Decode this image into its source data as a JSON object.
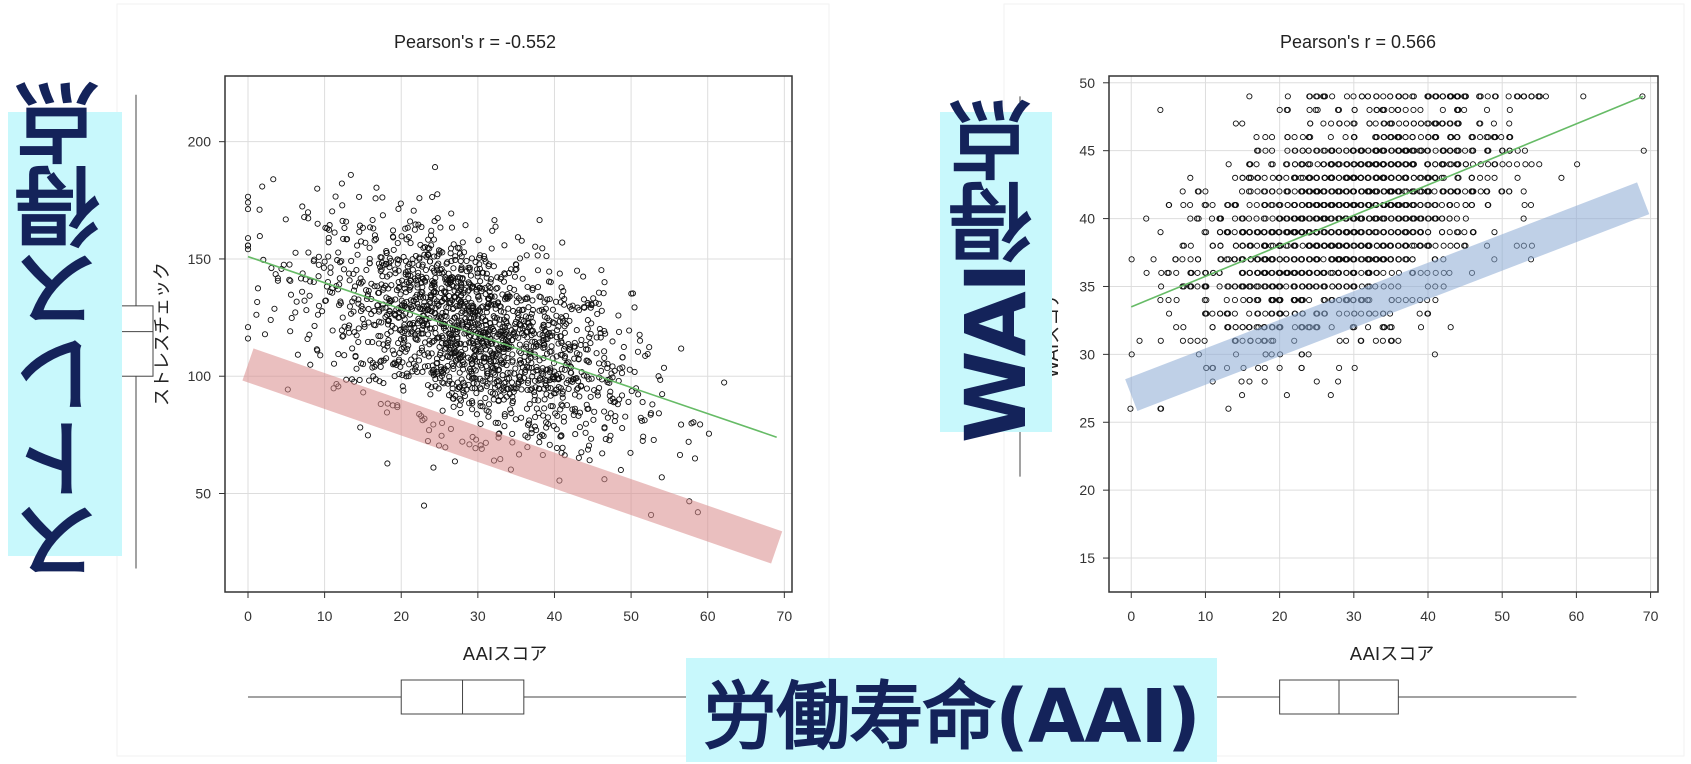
{
  "overlay_labels": {
    "stress": "ストレス得点",
    "wai": "WAI得点",
    "aai": "労働寿命(AAI)"
  },
  "colors": {
    "band_left": "#d98a8a",
    "band_right": "#8aaad4",
    "regression_line": "#66bb66",
    "point": "#111111",
    "grid": "#dddddd",
    "label_background": "#c8f8fc",
    "label_text": "#14235a"
  },
  "chart_data": [
    {
      "type": "scatter",
      "title": "Pearson's r = -0.552",
      "xlabel": "AAIスコア",
      "ylabel": "ストレスチェック",
      "xlim": [
        -3,
        71
      ],
      "ylim": [
        8,
        228
      ],
      "xticks": [
        0,
        10,
        20,
        30,
        40,
        50,
        60,
        70
      ],
      "yticks": [
        50,
        100,
        150,
        200
      ],
      "grid": true,
      "regression": {
        "x": [
          0,
          69
        ],
        "y": [
          151,
          74
        ]
      },
      "trend_band": {
        "x": [
          0,
          69
        ],
        "y": [
          105,
          27
        ]
      },
      "x_boxplot": {
        "whisker_low": 0,
        "q1": 20,
        "median": 28,
        "q3": 36,
        "whisker_high": 69
      },
      "y_boxplot": {
        "whisker_low": 18,
        "q1": 100,
        "median": 119,
        "q3": 130,
        "whisker_high": 220
      },
      "points": {
        "n": 1800,
        "mean_x": 29,
        "sd_x": 10.5,
        "intercept": 151,
        "slope": -1.12,
        "residual_sd": 20
      }
    },
    {
      "type": "scatter",
      "title": "Pearson's r = 0.566",
      "xlabel": "AAIスコア",
      "ylabel": "WAIスコア",
      "xlim": [
        -3,
        71
      ],
      "ylim": [
        12.5,
        50.5
      ],
      "xticks": [
        0,
        10,
        20,
        30,
        40,
        50,
        60,
        70
      ],
      "yticks": [
        15,
        20,
        25,
        30,
        35,
        40,
        45,
        50
      ],
      "grid": true,
      "regression": {
        "x": [
          0,
          69
        ],
        "y": [
          33.5,
          49
        ]
      },
      "trend_band": {
        "x": [
          0,
          69
        ],
        "y": [
          27,
          41.5
        ]
      },
      "x_boxplot": {
        "whisker_low": 0,
        "q1": 20,
        "median": 28,
        "q3": 36,
        "whisker_high": 60
      },
      "y_boxplot": {
        "whisker_low": 21,
        "q1": 35,
        "median": 40,
        "q3": 43,
        "whisker_high": 49
      },
      "points": {
        "n": 1800,
        "mean_x": 29,
        "sd_x": 10.5,
        "intercept": 33.5,
        "slope": 0.225,
        "residual_sd": 4.2
      }
    }
  ]
}
